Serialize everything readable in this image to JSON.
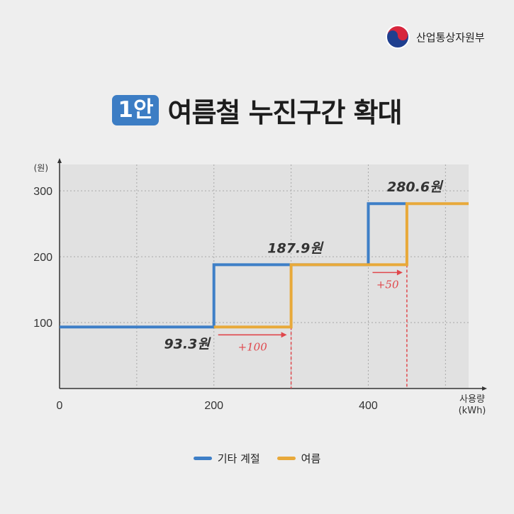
{
  "header": {
    "org_name": "산업통상자원부"
  },
  "title": {
    "badge": "1안",
    "text": "여름철 누진구간 확대"
  },
  "colors": {
    "other_season": "#3e7fc7",
    "summer": "#e8a93a",
    "annotation": "#e0474c",
    "badge": "#3c7dc4"
  },
  "chart_data": {
    "type": "line",
    "step": true,
    "ylabel": "(원)",
    "xlabel": "사용량\n(kWh)",
    "xlim": [
      0,
      530
    ],
    "ylim": [
      0,
      340
    ],
    "xticks": [
      0,
      200,
      400
    ],
    "yticks": [
      100,
      200,
      300
    ],
    "xgrid": [
      100,
      200,
      300,
      400,
      500
    ],
    "grid": true,
    "series": [
      {
        "name": "기타 계절",
        "color": "#3e7fc7",
        "x": [
          0,
          200,
          200,
          400,
          400,
          450
        ],
        "y": [
          93.3,
          93.3,
          187.9,
          187.9,
          280.6,
          280.6
        ]
      },
      {
        "name": "여름",
        "color": "#e8a93a",
        "x": [
          200,
          300,
          300,
          450,
          450,
          530
        ],
        "y": [
          93.3,
          93.3,
          187.9,
          187.9,
          280.6,
          280.6
        ]
      }
    ],
    "value_labels": [
      {
        "text": "93.3원",
        "x": 165,
        "y": 93.3
      },
      {
        "text": "187.9원",
        "x": 305,
        "y": 187.9
      },
      {
        "text": "280.6원",
        "x": 460,
        "y": 280.6
      }
    ],
    "shift_annotations": [
      {
        "text": "+100",
        "from": 200,
        "to": 300,
        "y": 93.3
      },
      {
        "text": "+50",
        "from": 400,
        "to": 450,
        "y": 187.9
      }
    ],
    "drop_lines": [
      300,
      450
    ]
  }
}
